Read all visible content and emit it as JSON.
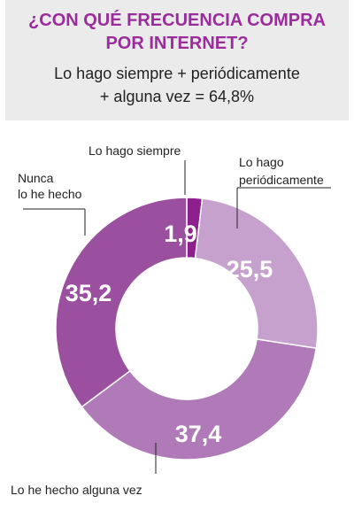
{
  "header": {
    "title_line1": "¿CON QUÉ FRECUENCIA COMPRA",
    "title_line2": "POR INTERNET?",
    "subtitle_line1": "Lo hago siempre + periódicamente",
    "subtitle_line2": "+ alguna vez = 64,8%"
  },
  "chart_data": {
    "type": "pie",
    "title": "¿CON QUÉ FRECUENCIA COMPRA POR INTERNET?",
    "slices": [
      {
        "label_lines": [
          "Lo hago siempre"
        ],
        "value": 1.9,
        "value_label": "1,9",
        "color": "#8e1f8e"
      },
      {
        "label_lines": [
          "Lo hago",
          "periódicamente"
        ],
        "value": 25.5,
        "value_label": "25,5",
        "color": "#c6a1cd"
      },
      {
        "label_lines": [
          "Lo he hecho alguna vez"
        ],
        "value": 37.4,
        "value_label": "37,4",
        "color": "#b07ab8"
      },
      {
        "label_lines": [
          "Nunca",
          "lo he hecho"
        ],
        "value": 35.2,
        "value_label": "35,2",
        "color": "#9a4f9f"
      }
    ],
    "donut": true,
    "legend": "none"
  }
}
